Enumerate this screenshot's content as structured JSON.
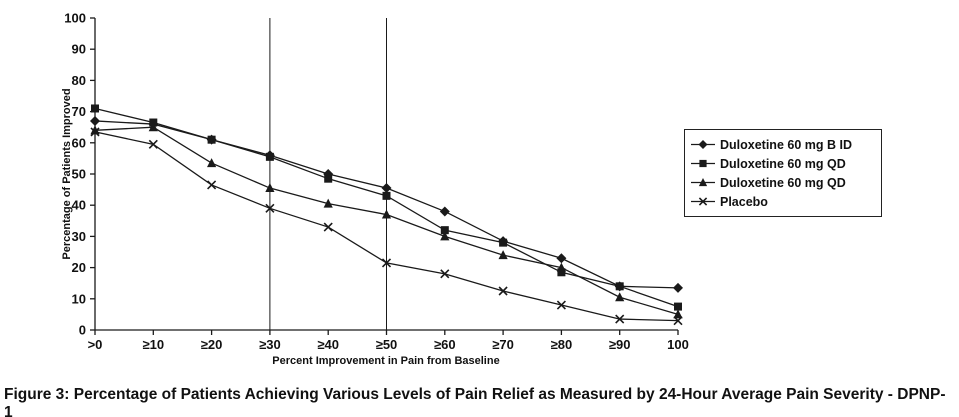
{
  "caption": "Figure 3: Percentage of Patients Achieving Various Levels of Pain Relief as Measured by 24-Hour Average Pain Severity - DPNP-1",
  "chart_data": {
    "type": "line",
    "title": "",
    "xlabel": "Percent Improvement in Pain from Baseline",
    "ylabel": "Percentage of Patients Improved",
    "categories": [
      ">0",
      "≥10",
      "≥20",
      "≥30",
      "≥40",
      "≥50",
      "≥60",
      "≥70",
      "≥80",
      "≥90",
      "100"
    ],
    "y_ticks": [
      0,
      10,
      20,
      30,
      40,
      50,
      60,
      70,
      80,
      90,
      100
    ],
    "ylim": [
      0,
      100
    ],
    "grid": "vertical reference lines only",
    "reference_line_categories": [
      "≥30",
      "≥50"
    ],
    "legend_position": "right",
    "line_color": "#1a1a1a",
    "series": [
      {
        "name": "Duloxetine 60 mg B ID",
        "marker": "diamond",
        "values": [
          67,
          66,
          61,
          56,
          50,
          45.5,
          38,
          28.5,
          23,
          14,
          13.5
        ]
      },
      {
        "name": "Duloxetine 60 mg QD",
        "marker": "square",
        "values": [
          71,
          66.5,
          61,
          55.5,
          48.5,
          43,
          32,
          28,
          18.5,
          14,
          7.5
        ]
      },
      {
        "name": "Duloxetine 60 mg QD",
        "marker": "triangle",
        "values": [
          64,
          65,
          53.5,
          45.5,
          40.5,
          37,
          30,
          24,
          20,
          10.5,
          5
        ]
      },
      {
        "name": "Placebo",
        "marker": "x",
        "values": [
          63.5,
          59.5,
          46.5,
          39,
          33,
          21.5,
          18,
          12.5,
          8,
          3.5,
          3
        ]
      }
    ]
  }
}
